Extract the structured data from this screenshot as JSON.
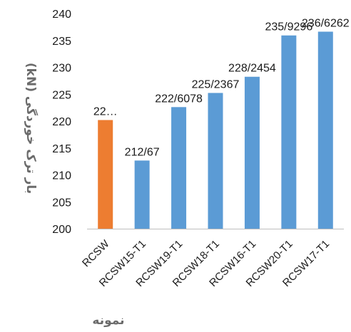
{
  "chart_data": {
    "type": "bar",
    "title": "",
    "xlabel": "نمونه",
    "ylabel": "بار ترک خوردگی (kN)",
    "ylim": [
      200,
      240
    ],
    "yticks": [
      200,
      205,
      210,
      215,
      220,
      225,
      230,
      235,
      240
    ],
    "grid": false,
    "categories": [
      "RCSW",
      "RCSW15-T1",
      "RCSW19-T1",
      "RCSW18-T1",
      "RCSW16-T1",
      "RCSW20-T1",
      "RCSW17-T1"
    ],
    "values": [
      220.2,
      212.67,
      222.6078,
      225.2367,
      228.2454,
      235.9296,
      236.6262
    ],
    "data_labels": [
      "22…",
      "212/67",
      "222/6078",
      "225/2367",
      "228/2454",
      "235/9296",
      "236/6262"
    ],
    "colors": [
      "#ed7d31",
      "#5b9bd5",
      "#5b9bd5",
      "#5b9bd5",
      "#5b9bd5",
      "#5b9bd5",
      "#5b9bd5"
    ]
  }
}
